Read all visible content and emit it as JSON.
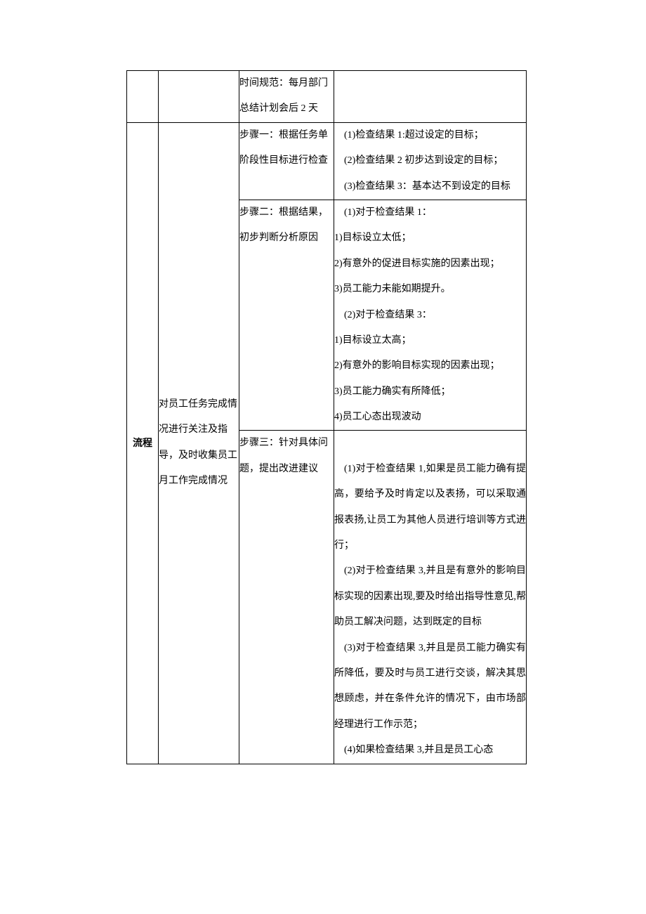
{
  "table": {
    "row0": {
      "col3": "时间规范：每月部门总结计划会后 2 天"
    },
    "row1": {
      "col1_label": "流程",
      "col2_text": "对员工任务完成情况进行关注及指导，及时收集员工月工作完成情况",
      "step1_label": "步骤一：根据任务单阶段性目标进行检查",
      "step1_result": " (1)检查结果 1:超过设定的目标；\n (2)检查结果 2 初步达到设定的目标；\n (3)检查结果 3：基本达不到设定的目标",
      "step2_label": "步骤二：根据结果，初步判断分析原因",
      "step2_result": " (1)对于检查结果 1：\n1)目标设立太低；\n2)有意外的促进目标实施的因素出现；\n3)员工能力未能如期提升。\n (2)对于检查结果 3：\n1)目标设立太高；\n2)有意外的影响目标实现的因素出现；\n3)员工能力确实有所降低；\n4)员工心态出现波动",
      "step3_label": "步骤三：针对具体问题，提出改进建议",
      "step3_result": "\n (1)对于检查结果 1,如果是员工能力确有提高，要给予及时肯定以及表扬，可以采取通报表扬,让员工为其他人员进行培训等方式进行；\n (2)对于检查结果 3,并且是有意外的影响目标实现的因素出现,要及时给出指导性意见,帮助员工解决问题，达到既定的目标\n (3)对于检查结果 3,并且是员工能力确实有所降低，要及时与员工进行交谈，解决其思想顾虑，并在条件允许的情况下，由市场部经理进行工作示范；\n (4)如果检查结果 3,并且是员工心态"
    }
  },
  "style": {
    "font_size_body_pt": 10.5,
    "font_size_bold_pt": 11,
    "line_height": 2.6,
    "border_color": "#000000",
    "text_color": "#000000",
    "background_color": "#ffffff"
  }
}
